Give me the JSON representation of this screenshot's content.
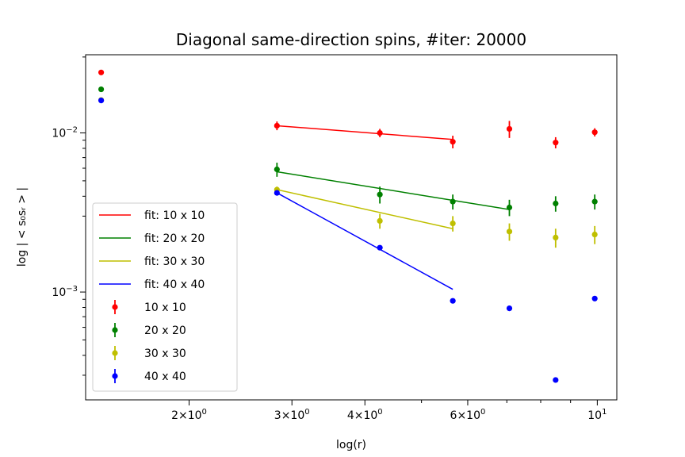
{
  "chart_data": {
    "type": "scatter",
    "title": "Diagonal same-direction spins, #iter: 20000",
    "xlabel": "log(r)",
    "ylabel": "log | < s₀sᵣ > |",
    "xscale": "log",
    "yscale": "log",
    "xlim": [
      1.33,
      10.8
    ],
    "ylim": [
      0.00021,
      0.031
    ],
    "grid": false,
    "legend_position": "center-left",
    "x_ticks": [
      {
        "value": 2,
        "mantissa": "2×10",
        "exp": "0"
      },
      {
        "value": 3,
        "mantissa": "3×10",
        "exp": "0"
      },
      {
        "value": 4,
        "mantissa": "4×10",
        "exp": "0"
      },
      {
        "value": 6,
        "mantissa": "6×10",
        "exp": "0"
      },
      {
        "value": 10,
        "mantissa": "10",
        "exp": "1"
      }
    ],
    "y_ticks": [
      {
        "value": 0.001,
        "mantissa": "10",
        "exp": "−3"
      },
      {
        "value": 0.01,
        "mantissa": "10",
        "exp": "−2"
      }
    ],
    "series": [
      {
        "name": "10 x 10",
        "fit_name": "fit: 10 x 10",
        "color": "#ff0000",
        "x": [
          1.414,
          2.828,
          4.243,
          5.657,
          7.071,
          8.485,
          9.9
        ],
        "y": [
          0.024,
          0.0111,
          0.01,
          0.0088,
          0.0106,
          0.0087,
          0.0101
        ],
        "err": [
          0,
          0.0007,
          0.0006,
          0.0008,
          0.0013,
          0.0007,
          0.0006
        ],
        "fit_x": [
          2.828,
          5.657
        ],
        "fit_y": [
          0.0111,
          0.0091
        ]
      },
      {
        "name": "20 x 20",
        "fit_name": "fit: 20 x 20",
        "color": "#008000",
        "x": [
          1.414,
          2.828,
          4.243,
          5.657,
          7.071,
          8.485,
          9.9
        ],
        "y": [
          0.0188,
          0.0059,
          0.0041,
          0.0037,
          0.0034,
          0.0036,
          0.0037
        ],
        "err": [
          0,
          0.0006,
          0.0005,
          0.0004,
          0.0004,
          0.0004,
          0.0004
        ],
        "fit_x": [
          2.828,
          7.071
        ],
        "fit_y": [
          0.0057,
          0.0033
        ]
      },
      {
        "name": "30 x 30",
        "fit_name": "fit: 30 x 30",
        "color": "#bfbf00",
        "x": [
          1.414,
          2.828,
          4.243,
          5.657,
          7.071,
          8.485,
          9.9
        ],
        "y": [
          0.0161,
          0.0044,
          0.0028,
          0.0027,
          0.0024,
          0.0022,
          0.0023
        ],
        "err": [
          0,
          0.0002,
          0.0003,
          0.0003,
          0.0003,
          0.0003,
          0.0003
        ],
        "fit_x": [
          2.828,
          5.657
        ],
        "fit_y": [
          0.0044,
          0.0025
        ]
      },
      {
        "name": "40 x 40",
        "fit_name": "fit: 40 x 40",
        "color": "#0000ff",
        "x": [
          1.414,
          2.828,
          4.243,
          5.657,
          7.071,
          8.485,
          9.9
        ],
        "y": [
          0.016,
          0.0042,
          0.0019,
          0.00088,
          0.00079,
          0.00028,
          0.00091
        ],
        "err": [
          0,
          0,
          0,
          0,
          0,
          0,
          0
        ],
        "fit_x": [
          2.828,
          5.657
        ],
        "fit_y": [
          0.0042,
          0.00104
        ]
      }
    ]
  }
}
